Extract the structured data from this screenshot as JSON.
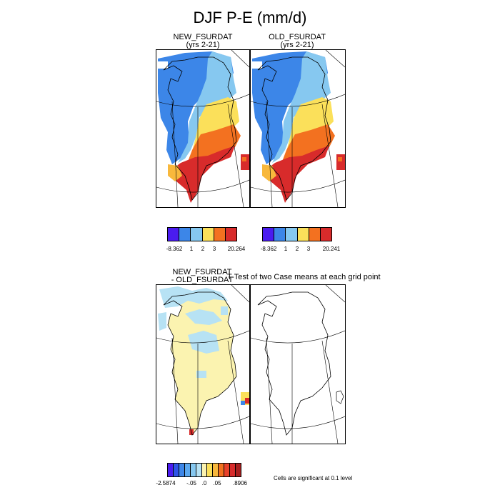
{
  "title": "DJF P-E (mm/d)",
  "panels": {
    "new": {
      "title": "NEW_FSURDAT",
      "subtitle": "(yrs 2-21)"
    },
    "old": {
      "title": "OLD_FSURDAT",
      "subtitle": "(yrs 2-21)"
    },
    "diff": {
      "title_line1": "NEW_FSURDAT",
      "title_line2": "- OLD_FSURDAT"
    },
    "ttest": {
      "title": "T-Test of two Case means at each grid point"
    }
  },
  "colorbars": {
    "new": {
      "colors": [
        "#4a1cf0",
        "#3c86e8",
        "#86c8f0",
        "#fbe05a",
        "#f37120",
        "#d82b2b"
      ],
      "labels": [
        "-8.362",
        "1",
        "2",
        "3",
        "20.264"
      ]
    },
    "old": {
      "colors": [
        "#4a1cf0",
        "#3c86e8",
        "#86c8f0",
        "#fbe05a",
        "#f37120",
        "#d82b2b"
      ],
      "labels": [
        "-8.362",
        "1",
        "2",
        "3",
        "20.241"
      ]
    },
    "diff": {
      "colors": [
        "#4a1cf0",
        "#2f55e8",
        "#3c86e8",
        "#5aa8f0",
        "#86c8f0",
        "#b7e2f4",
        "#fbf3b0",
        "#fbe05a",
        "#f8b83c",
        "#f37120",
        "#e8412a",
        "#d82b2b",
        "#a81e1e"
      ],
      "labels": [
        "-2.5874",
        "-.05",
        ".0",
        ".05",
        ".8906"
      ]
    }
  },
  "significance_note": "Cells are significant at 0.1 level"
}
